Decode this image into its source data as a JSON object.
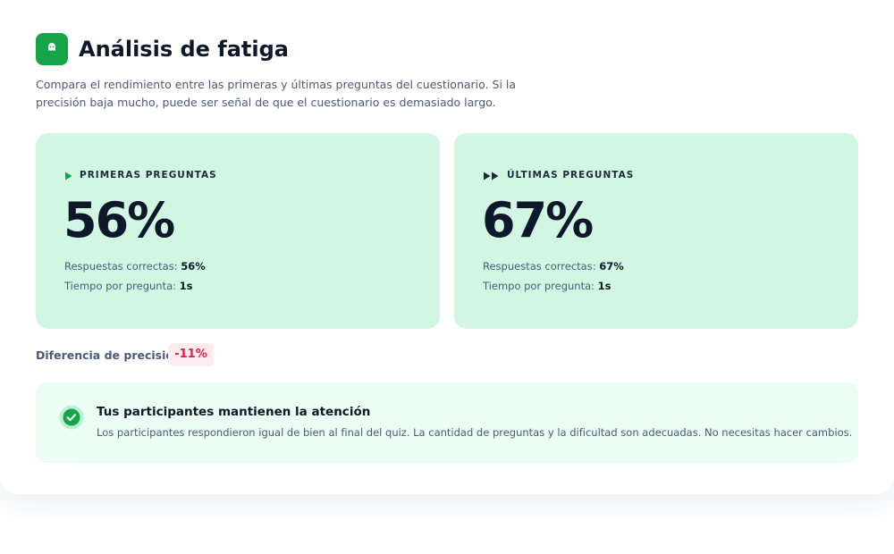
{
  "header": {
    "title": "Análisis de fatiga",
    "description": "Compara el rendimiento entre las primeras y últimas preguntas del cuestionario. Si la precisión baja mucho, puede ser señal de que el cuestionario es demasiado largo."
  },
  "cards": [
    {
      "label": "PRIMERAS PREGUNTAS",
      "value": "56%",
      "correct_label": "Respuestas correctas:",
      "correct_value": "56%",
      "time_label": "Tiempo por pregunta:",
      "time_value": "1s"
    },
    {
      "label": "ÚLTIMAS PREGUNTAS",
      "value": "67%",
      "correct_label": "Respuestas correctas:",
      "correct_value": "67%",
      "time_label": "Tiempo por pregunta:",
      "time_value": "1s"
    }
  ],
  "difference": {
    "label": "Diferencia de precisión",
    "value": "-11%"
  },
  "notice": {
    "title": "Tus participantes mantienen la atención",
    "text": "Los participantes respondieron igual de bien al final del quiz. La cantidad de preguntas y la dificultad son adecuadas. No necesitas hacer cambios."
  }
}
